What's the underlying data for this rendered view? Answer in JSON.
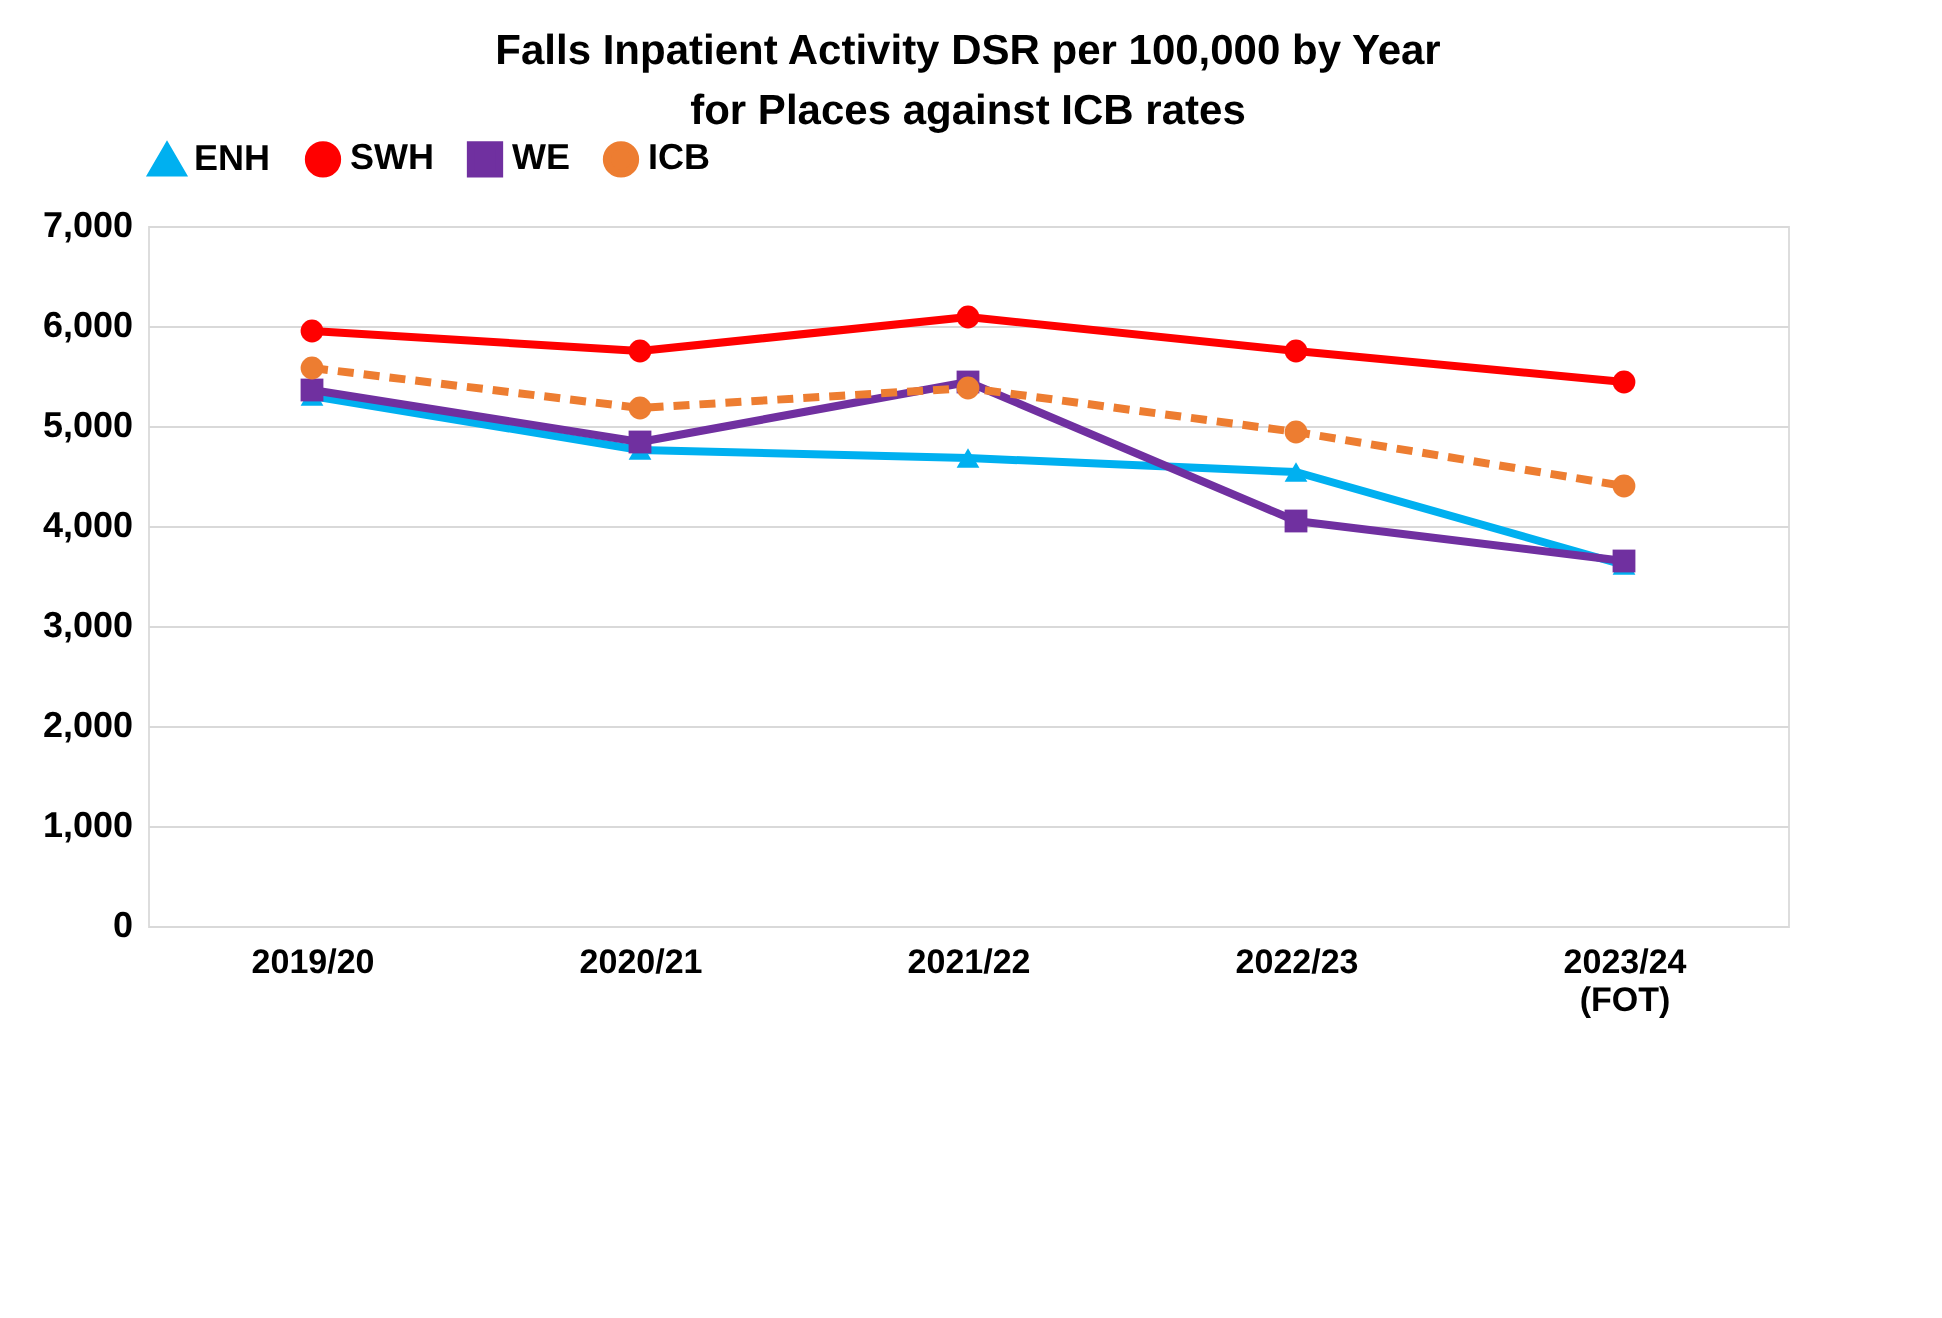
{
  "chart_data": {
    "type": "line",
    "title": "Falls Inpatient Activity  DSR per 100,000 by Year for Places against ICB rates",
    "categories": [
      "2019/20",
      "2020/21",
      "2021/22",
      "2022/23",
      "2023/24 (FOT)"
    ],
    "series": [
      {
        "name": "ENH",
        "color": "#00b0f0",
        "marker": "triangle",
        "line_style": "solid",
        "values": [
          5300,
          4760,
          4680,
          4540,
          3610
        ]
      },
      {
        "name": "SWH",
        "color": "#ff0000",
        "marker": "circle",
        "line_style": "solid",
        "values": [
          5950,
          5750,
          6090,
          5750,
          5440
        ]
      },
      {
        "name": "WE",
        "color": "#7030a0",
        "marker": "square",
        "line_style": "solid",
        "values": [
          5360,
          4840,
          5440,
          4050,
          3650
        ]
      },
      {
        "name": "ICB",
        "color": "#ed7d31",
        "marker": "circle",
        "line_style": "dashed",
        "values": [
          5580,
          5180,
          5380,
          4940,
          4400
        ]
      }
    ],
    "ylim": [
      0,
      7000
    ],
    "yticks": [
      {
        "value": 0,
        "label": "0"
      },
      {
        "value": 1000,
        "label": "1,000"
      },
      {
        "value": 2000,
        "label": "2,000"
      },
      {
        "value": 3000,
        "label": "3,000"
      },
      {
        "value": 4000,
        "label": "4,000"
      },
      {
        "value": 5000,
        "label": "5,000"
      },
      {
        "value": 6000,
        "label": "6,000"
      },
      {
        "value": 7000,
        "label": "7,000"
      }
    ],
    "grid": "y",
    "legend": "top"
  }
}
